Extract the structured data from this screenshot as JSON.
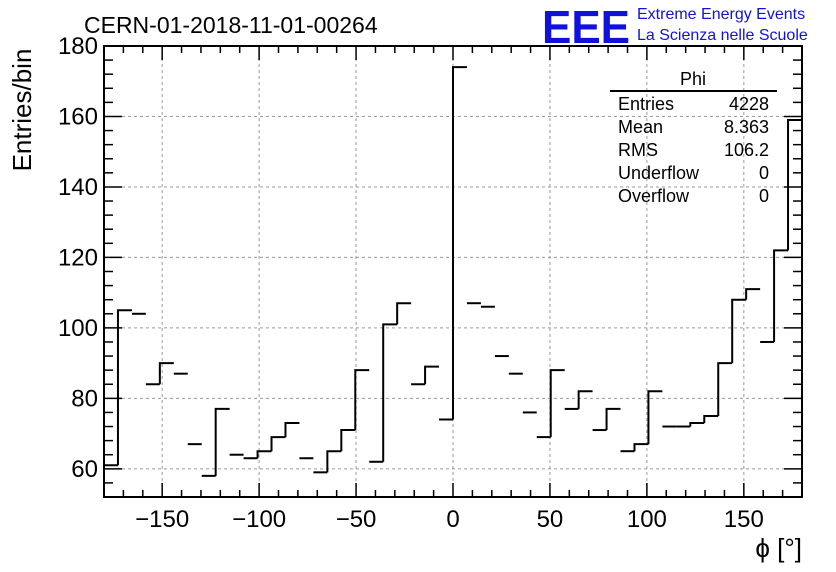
{
  "header": {
    "title": "CERN-01-2018-11-01-00264",
    "logo_letters": "EEE",
    "logo_line1": "Extreme Energy Events",
    "logo_line2": "La Scienza nelle Scuole"
  },
  "stats": {
    "name": "Phi",
    "rows": [
      {
        "label": "Entries",
        "value": "4228"
      },
      {
        "label": "Mean",
        "value": "8.363"
      },
      {
        "label": "RMS",
        "value": "106.2"
      },
      {
        "label": "Underflow",
        "value": "0"
      },
      {
        "label": "Overflow",
        "value": "0"
      }
    ]
  },
  "colors": {
    "line": "#000000",
    "grid": "#9a9a9a",
    "logo": "#1111dd"
  },
  "chart_data": {
    "type": "bar",
    "histogram_style": "step",
    "title": "CERN-01-2018-11-01-00264",
    "xlabel": "ϕ [°]",
    "ylabel": "Entries/bin",
    "xlim": [
      -180,
      180
    ],
    "ylim": [
      52,
      180
    ],
    "grid": true,
    "bin_edges": [
      -180,
      -172.8,
      -165.6,
      -158.4,
      -151.2,
      -144,
      -136.8,
      -129.6,
      -122.4,
      -115.2,
      -108,
      -100.8,
      -93.6,
      -86.4,
      -79.2,
      -72,
      -64.8,
      -57.6,
      -50.4,
      -43.2,
      -36,
      -28.8,
      -21.6,
      -14.4,
      -7.2,
      0,
      7.2,
      14.4,
      21.6,
      28.8,
      36,
      43.2,
      50.4,
      57.6,
      64.8,
      72,
      79.2,
      86.4,
      93.6,
      100.8,
      108,
      115.2,
      122.4,
      129.6,
      136.8,
      144,
      151.2,
      158.4,
      165.6,
      172.8,
      180
    ],
    "values": [
      61,
      105,
      104,
      84,
      90,
      87,
      67,
      58,
      77,
      64,
      63,
      65,
      69,
      73,
      63,
      59,
      65,
      71,
      88,
      62,
      101,
      107,
      84,
      89,
      74,
      174,
      107,
      106,
      92,
      87,
      76,
      69,
      88,
      77,
      82,
      71,
      77,
      65,
      67,
      82,
      72,
      72,
      73,
      75,
      90,
      108,
      111,
      96,
      122,
      159
    ],
    "xticks": [
      -150,
      -100,
      -50,
      0,
      50,
      100,
      150
    ],
    "xtick_labels": [
      "−150",
      "−100",
      "−50",
      "0",
      "50",
      "100",
      "150"
    ],
    "yticks": [
      60,
      80,
      100,
      120,
      140,
      160,
      180
    ],
    "ytick_labels": [
      "60",
      "80",
      "100",
      "120",
      "140",
      "160",
      "180"
    ]
  }
}
